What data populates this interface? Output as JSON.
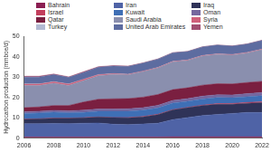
{
  "chart_data": {
    "type": "stacked_area",
    "y_label": "Hydrocarbon production (mmboe/d)",
    "x": [
      2006,
      2007,
      2008,
      2009,
      2010,
      2011,
      2012,
      2013,
      2014,
      2015,
      2016,
      2017,
      2018,
      2019,
      2020,
      2021,
      2022
    ],
    "xlim": [
      2006,
      2022
    ],
    "xticks": [
      2006,
      2008,
      2010,
      2012,
      2014,
      2016,
      2018,
      2020,
      2022
    ],
    "ylim": [
      0,
      50
    ],
    "yticks": [
      0,
      10,
      20,
      30,
      40,
      50
    ],
    "stacked": true,
    "grid": false,
    "legend": "top",
    "series": [
      {
        "name": "Bahrain",
        "color": "#8b1f52",
        "values": [
          0.5,
          0.5,
          0.5,
          0.5,
          0.5,
          0.5,
          0.5,
          0.5,
          0.5,
          0.5,
          0.6,
          0.6,
          0.6,
          0.6,
          0.6,
          0.6,
          0.6
        ]
      },
      {
        "name": "Iran",
        "color": "#4f63a6",
        "values": [
          6.5,
          6.6,
          6.7,
          6.6,
          6.8,
          6.9,
          6.3,
          6.1,
          6.4,
          6.8,
          8.5,
          9.5,
          10.5,
          11.0,
          11.5,
          12.0,
          12.0
        ]
      },
      {
        "name": "Iraq",
        "color": "#2f3358",
        "values": [
          2.2,
          2.3,
          2.5,
          2.6,
          2.6,
          2.9,
          3.2,
          3.3,
          3.5,
          4.2,
          4.7,
          4.8,
          4.9,
          5.0,
          4.5,
          4.5,
          4.8
        ]
      },
      {
        "name": "Israel",
        "color": "#c23e5c",
        "values": [
          0.1,
          0.1,
          0.1,
          0.1,
          0.1,
          0.1,
          0.1,
          0.2,
          0.2,
          0.2,
          0.2,
          0.2,
          0.2,
          0.3,
          0.4,
          0.4,
          0.4
        ]
      },
      {
        "name": "Kuwait",
        "color": "#3f6fb5",
        "values": [
          2.8,
          2.8,
          2.9,
          2.6,
          2.6,
          2.8,
          3.1,
          3.1,
          3.1,
          3.1,
          3.2,
          3.0,
          3.0,
          3.0,
          2.8,
          2.8,
          3.0
        ]
      },
      {
        "name": "Oman",
        "color": "#76679e",
        "values": [
          0.9,
          0.9,
          0.9,
          1.0,
          1.1,
          1.1,
          1.1,
          1.2,
          1.2,
          1.3,
          1.3,
          1.3,
          1.4,
          1.4,
          1.4,
          1.5,
          1.6
        ]
      },
      {
        "name": "Qatar",
        "color": "#7a1f40",
        "values": [
          1.9,
          2.1,
          2.4,
          2.6,
          4.0,
          4.8,
          5.0,
          5.0,
          5.2,
          5.3,
          5.3,
          5.3,
          5.4,
          5.4,
          5.4,
          5.5,
          5.5
        ]
      },
      {
        "name": "Saudi Arabia",
        "color": "#8a8fae",
        "values": [
          11.0,
          10.6,
          11.0,
          9.9,
          10.5,
          11.5,
          12.0,
          11.7,
          12.5,
          13.0,
          13.6,
          13.4,
          14.3,
          14.4,
          14.2,
          14.5,
          15.5
        ]
      },
      {
        "name": "Syria",
        "color": "#d0607a",
        "values": [
          0.6,
          0.6,
          0.6,
          0.6,
          0.6,
          0.5,
          0.3,
          0.2,
          0.2,
          0.2,
          0.2,
          0.2,
          0.2,
          0.2,
          0.2,
          0.2,
          0.2
        ]
      },
      {
        "name": "Turkey",
        "color": "#b3bad3",
        "values": [
          0.1,
          0.1,
          0.1,
          0.1,
          0.1,
          0.1,
          0.1,
          0.1,
          0.1,
          0.1,
          0.1,
          0.1,
          0.1,
          0.1,
          0.1,
          0.1,
          0.1
        ]
      },
      {
        "name": "United Arab Emirates",
        "color": "#5d6ca0",
        "values": [
          3.4,
          3.4,
          3.5,
          3.2,
          3.3,
          3.6,
          3.7,
          3.8,
          3.9,
          4.1,
          4.2,
          4.1,
          4.2,
          4.3,
          4.1,
          4.1,
          4.3
        ]
      },
      {
        "name": "Yemen",
        "color": "#a14e70",
        "values": [
          0.4,
          0.4,
          0.3,
          0.3,
          0.4,
          0.3,
          0.2,
          0.2,
          0.2,
          0.1,
          0.1,
          0.1,
          0.1,
          0.1,
          0.1,
          0.1,
          0.1
        ]
      }
    ]
  }
}
